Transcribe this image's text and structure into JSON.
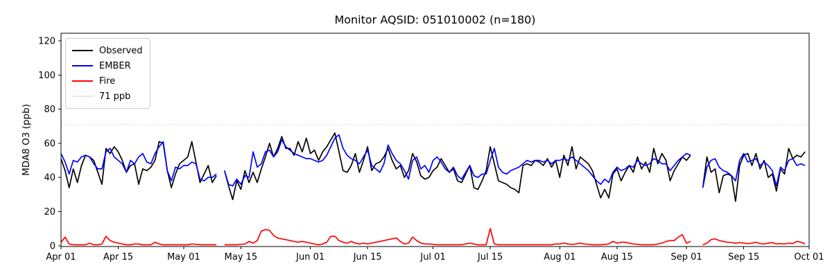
{
  "chart_data": {
    "type": "line",
    "title": "Monitor AQSID: 051010002 (n=180)",
    "ylabel": "MDA8 O3 (ppb)",
    "n_points": 180,
    "ylim": [
      -0.5,
      124.5
    ],
    "yticks": [
      0,
      20,
      40,
      60,
      80,
      100,
      120
    ],
    "x_total_days": 183,
    "xticks": [
      {
        "label": "Apr 01",
        "day": 0
      },
      {
        "label": "Apr 15",
        "day": 14
      },
      {
        "label": "May 01",
        "day": 30
      },
      {
        "label": "May 15",
        "day": 44
      },
      {
        "label": "Jun 01",
        "day": 61
      },
      {
        "label": "Jun 15",
        "day": 75
      },
      {
        "label": "Jul 01",
        "day": 91
      },
      {
        "label": "Jul 15",
        "day": 105
      },
      {
        "label": "Aug 01",
        "day": 122
      },
      {
        "label": "Aug 15",
        "day": 136
      },
      {
        "label": "Sep 01",
        "day": 153
      },
      {
        "label": "Sep 15",
        "day": 167
      },
      {
        "label": "Oct 01",
        "day": 183
      }
    ],
    "threshold": {
      "label": "71 ppb",
      "value": 71,
      "color": "#d3d3d3",
      "style": "dotted"
    },
    "legend_items": [
      {
        "label": "Observed",
        "color": "#000000",
        "style": "solid"
      },
      {
        "label": "EMBER",
        "color": "#0000ff",
        "style": "solid"
      },
      {
        "label": "Fire",
        "color": "#ff0000",
        "style": "solid"
      },
      {
        "label": "71 ppb",
        "color": "#d3d3d3",
        "style": "dotted"
      }
    ],
    "grid": false,
    "legend_position": "upper-left",
    "series": [
      {
        "name": "Observed",
        "color": "#000000",
        "values": [
          51,
          44,
          34,
          45,
          37,
          47,
          53,
          52,
          50,
          43,
          36,
          57,
          54,
          58,
          55,
          50,
          43,
          47,
          48,
          36,
          45,
          44,
          46,
          50,
          61,
          60,
          44,
          34,
          42,
          48,
          50,
          52,
          61,
          49,
          37,
          42,
          47,
          37,
          41,
          null,
          44,
          35,
          27,
          38,
          33,
          44,
          37,
          43,
          37,
          45,
          52,
          60,
          52,
          57,
          64,
          57,
          57,
          53,
          61,
          55,
          63,
          54,
          56,
          50,
          55,
          58,
          62,
          66,
          55,
          44,
          43,
          47,
          54,
          43,
          50,
          58,
          44,
          48,
          49,
          52,
          57,
          50,
          45,
          47,
          40,
          44,
          54,
          49,
          41,
          39,
          40,
          44,
          46,
          51,
          47,
          43,
          45,
          38,
          37,
          42,
          47,
          34,
          33,
          38,
          44,
          58,
          48,
          38,
          37,
          36,
          34,
          33,
          31,
          47,
          48,
          47,
          50,
          49,
          47,
          51,
          46,
          50,
          40,
          53,
          47,
          58,
          45,
          52,
          50,
          48,
          44,
          36,
          28,
          33,
          28,
          42,
          45,
          38,
          43,
          47,
          43,
          52,
          45,
          49,
          43,
          57,
          48,
          54,
          50,
          38,
          44,
          48,
          52,
          50,
          53,
          null,
          null,
          34,
          52,
          43,
          45,
          31,
          41,
          42,
          41,
          26,
          47,
          53,
          54,
          47,
          54,
          45,
          50,
          40,
          42,
          32,
          45,
          42,
          57,
          51,
          53,
          52,
          55
        ]
      },
      {
        "name": "EMBER",
        "color": "#0000ff",
        "values": [
          54,
          49,
          42,
          50,
          49,
          52,
          53,
          52,
          48,
          45,
          45,
          55,
          57,
          52,
          50,
          48,
          43,
          50,
          48,
          52,
          54,
          49,
          48,
          54,
          58,
          61,
          44,
          38,
          46,
          45,
          47,
          47,
          49,
          48,
          39,
          38,
          40,
          40,
          42,
          null,
          44,
          36,
          35,
          39,
          36,
          41,
          40,
          55,
          46,
          48,
          55,
          56,
          52,
          55,
          62,
          58,
          56,
          54,
          53,
          52,
          51,
          51,
          50,
          49,
          50,
          53,
          58,
          63,
          65,
          57,
          53,
          51,
          50,
          48,
          52,
          56,
          47,
          45,
          43,
          48,
          59,
          54,
          50,
          48,
          44,
          39,
          50,
          52,
          45,
          47,
          43,
          50,
          52,
          49,
          45,
          43,
          46,
          41,
          39,
          43,
          47,
          41,
          40,
          42,
          42,
          50,
          57,
          46,
          43,
          42,
          44,
          45,
          46,
          48,
          50,
          49,
          50,
          50,
          49,
          50,
          48,
          50,
          50,
          51,
          50,
          52,
          50,
          48,
          46,
          44,
          41,
          38,
          36,
          39,
          37,
          43,
          46,
          44,
          45,
          47,
          46,
          50,
          48,
          47,
          48,
          51,
          50,
          48,
          48,
          44,
          47,
          50,
          52,
          54,
          53,
          null,
          null,
          34,
          46,
          50,
          51,
          46,
          44,
          43,
          41,
          38,
          50,
          54,
          49,
          50,
          51,
          47,
          49,
          47,
          44,
          35,
          46,
          44,
          50,
          51,
          47,
          48,
          47
        ]
      },
      {
        "name": "Fire",
        "color": "#ff0000",
        "values": [
          2,
          5,
          1,
          0.5,
          0.5,
          0.5,
          0.5,
          1.5,
          0.5,
          0.5,
          1,
          5.5,
          3,
          2,
          1.5,
          1,
          0.5,
          0.5,
          1,
          1,
          0.5,
          0.5,
          0.5,
          2,
          1,
          0.5,
          0.5,
          0.5,
          0.5,
          0.5,
          0.5,
          0.5,
          1,
          0.8,
          0.5,
          0.5,
          0.5,
          0.5,
          0.5,
          null,
          0.5,
          0.5,
          0.5,
          0.5,
          0.8,
          1,
          2.5,
          1.5,
          3,
          8.5,
          9.5,
          9,
          6,
          4.5,
          4,
          3.5,
          3,
          2.5,
          2,
          2.5,
          2,
          1.5,
          1,
          0.5,
          1,
          2,
          5.5,
          5.5,
          3,
          2,
          1.5,
          2.5,
          1.5,
          1,
          1.5,
          1,
          1.5,
          2,
          2.5,
          3,
          3.5,
          4,
          4.5,
          2.5,
          1,
          1.5,
          5,
          3,
          1.5,
          1,
          1,
          0.8,
          0.5,
          0.5,
          0.5,
          0.5,
          0.5,
          0.5,
          0.5,
          1,
          1.5,
          1,
          0.5,
          0.5,
          0.5,
          10,
          1,
          0.5,
          0.5,
          0.5,
          0.5,
          0.5,
          0.5,
          0.5,
          0.5,
          0.5,
          0.5,
          0.5,
          0.5,
          0.5,
          0.5,
          1,
          1,
          1.5,
          1,
          0.8,
          1,
          1.5,
          1,
          0.8,
          0.5,
          0.5,
          0.5,
          0.8,
          1,
          2.5,
          1.5,
          2,
          2,
          1.5,
          1,
          0.8,
          0.5,
          0.5,
          0.5,
          0.5,
          1,
          1.5,
          2.5,
          3,
          3,
          5,
          6.5,
          1.5,
          2.5,
          null,
          null,
          0.5,
          1.5,
          3.5,
          4,
          3,
          2.5,
          2,
          1.8,
          1.5,
          1.8,
          1.5,
          1.2,
          1.5,
          2,
          1.2,
          1,
          1.5,
          1.8,
          1,
          1.2,
          1,
          1.5,
          1.2,
          2.5,
          2,
          1
        ]
      }
    ]
  },
  "layout_colors": {
    "axes": "#000000",
    "background": "#ffffff",
    "legend_border": "#cccccc"
  }
}
